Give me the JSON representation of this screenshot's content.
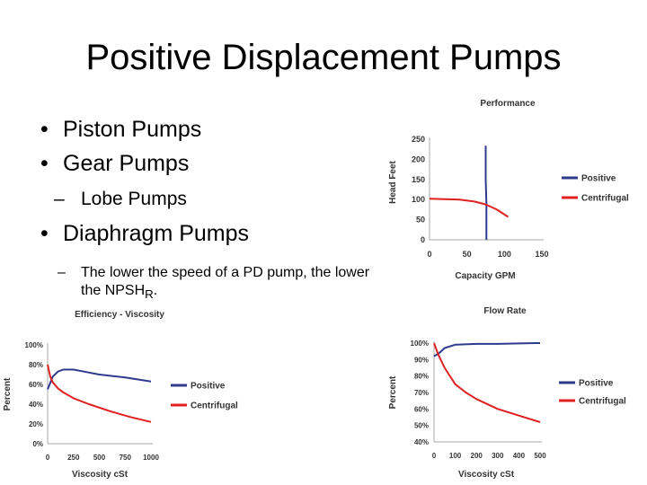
{
  "slide": {
    "title": "Positive Displacement Pumps",
    "bullets": [
      {
        "text": "Piston Pumps"
      },
      {
        "text": "Gear Pumps"
      },
      {
        "text": "Lobe Pumps"
      },
      {
        "text": "Diaphragm Pumps"
      }
    ],
    "dash": "–",
    "bullet_glyph": "•",
    "note": {
      "text": "The lower the speed of a PD pump, the lower the NPSH",
      "sub": "R",
      "end": "."
    }
  },
  "colors": {
    "positive": "#2e3a8c",
    "centrifugal": "#e02020",
    "axis": "#aaaaaa"
  },
  "chart_data": [
    {
      "type": "line",
      "title": "Performance",
      "xlabel": "Capacity GPM",
      "ylabel": "Head Feet",
      "x_ticks": [
        "0",
        "50",
        "100",
        "150"
      ],
      "y_ticks": [
        "0",
        "50",
        "100",
        "150",
        "200",
        "250"
      ],
      "xlim": [
        0,
        150
      ],
      "ylim": [
        0,
        250
      ],
      "legend_position": "right",
      "series": [
        {
          "name": "Positive",
          "color": "#2e3a8c",
          "x": [
            75,
            75,
            76,
            76,
            76
          ],
          "y": [
            234,
            150,
            90,
            30,
            0
          ]
        },
        {
          "name": "Centrifugal",
          "color": "#e02020",
          "x": [
            0,
            20,
            40,
            60,
            75,
            90,
            105
          ],
          "y": [
            102,
            101,
            100,
            95,
            88,
            75,
            57
          ]
        }
      ]
    },
    {
      "type": "line",
      "title": "Efficiency - Viscosity",
      "xlabel": "Viscosity cSt",
      "ylabel": "Percent",
      "x_ticks": [
        "0",
        "250",
        "500",
        "750",
        "1000"
      ],
      "y_ticks": [
        "0%",
        "20%",
        "40%",
        "60%",
        "80%",
        "100%"
      ],
      "xlim": [
        0,
        1000
      ],
      "ylim": [
        0,
        100
      ],
      "legend_position": "right",
      "series": [
        {
          "name": "Positive",
          "color": "#2e3a8c",
          "x": [
            0,
            50,
            100,
            150,
            250,
            350,
            500,
            750,
            1000
          ],
          "y": [
            55,
            68,
            73,
            75,
            75,
            73,
            70,
            67,
            63
          ]
        },
        {
          "name": "Centrifugal",
          "color": "#e02020",
          "x": [
            0,
            25,
            50,
            100,
            150,
            250,
            400,
            600,
            800,
            1000
          ],
          "y": [
            80,
            68,
            62,
            56,
            52,
            46,
            40,
            33,
            27,
            22
          ]
        }
      ]
    },
    {
      "type": "line",
      "title": "Flow Rate",
      "xlabel": "Viscosity cSt",
      "ylabel": "Percent",
      "x_ticks": [
        "0",
        "100",
        "200",
        "300",
        "400",
        "500"
      ],
      "y_ticks": [
        "40%",
        "50%",
        "60%",
        "70%",
        "80%",
        "90%",
        "100%"
      ],
      "xlim": [
        0,
        500
      ],
      "ylim": [
        40,
        100
      ],
      "legend_position": "right",
      "series": [
        {
          "name": "Positive",
          "color": "#2e3a8c",
          "x": [
            0,
            25,
            50,
            100,
            200,
            300,
            400,
            480,
            500
          ],
          "y": [
            92,
            94,
            97,
            99,
            99.5,
            99.5,
            99.8,
            100,
            100
          ]
        },
        {
          "name": "Centrifugal",
          "color": "#e02020",
          "x": [
            0,
            20,
            50,
            100,
            150,
            200,
            300,
            400,
            500
          ],
          "y": [
            100,
            93,
            85,
            75,
            70,
            66,
            60,
            56,
            52
          ]
        }
      ]
    }
  ]
}
